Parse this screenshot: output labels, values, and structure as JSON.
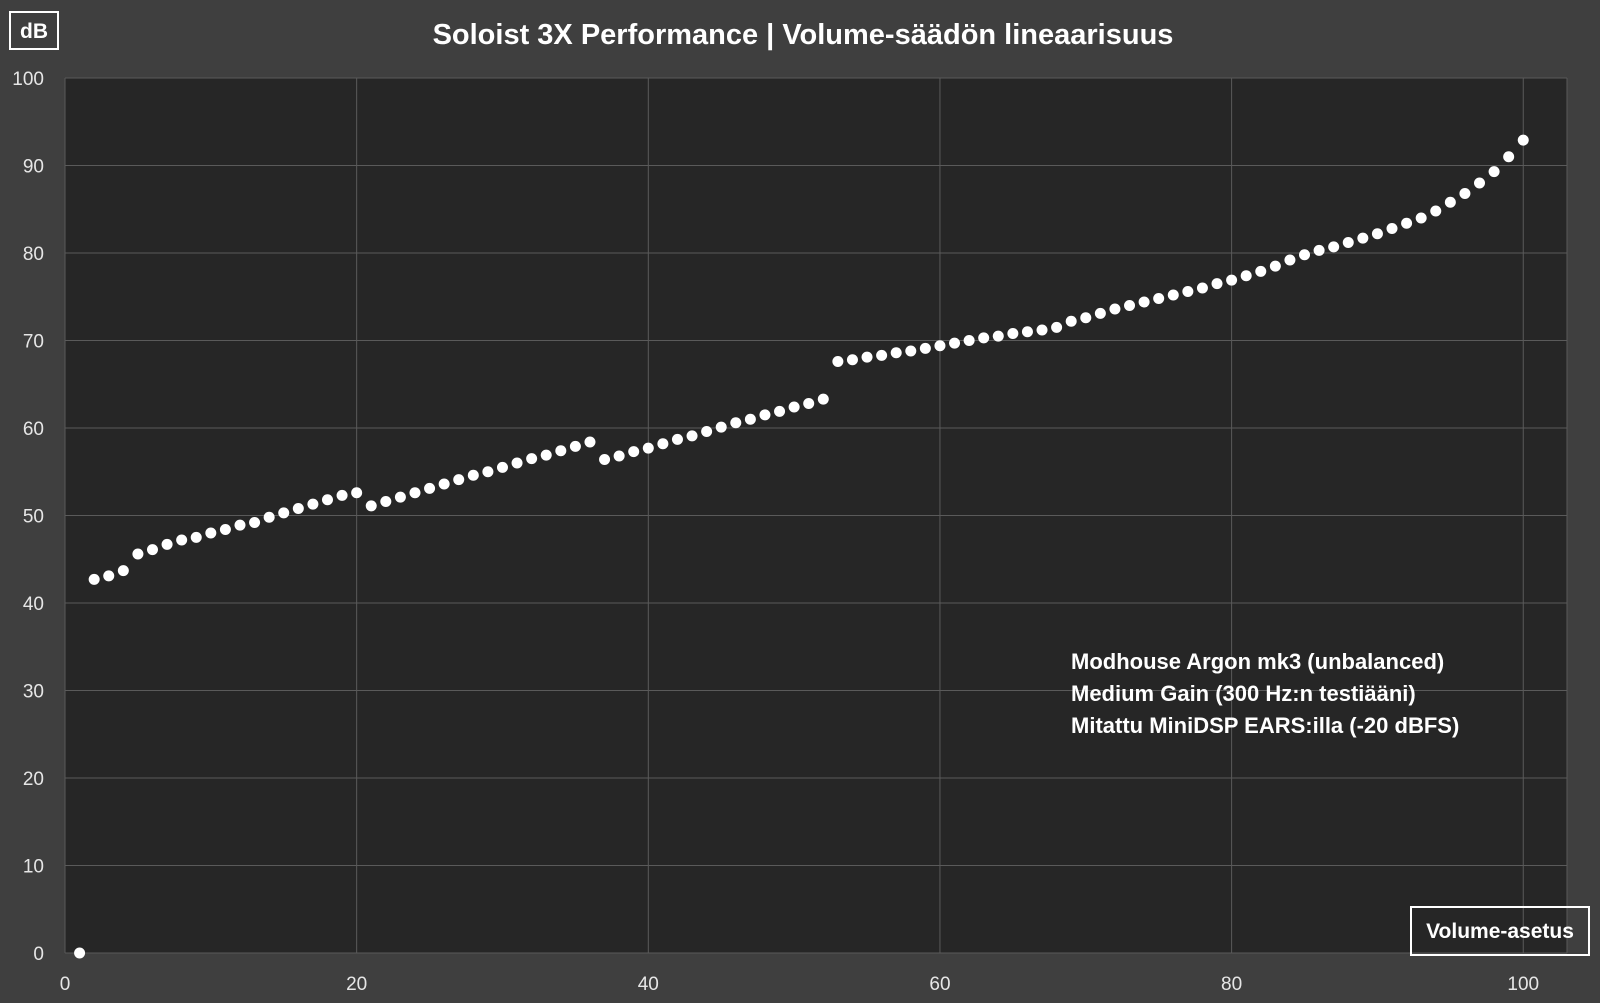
{
  "chart_data": {
    "type": "scatter",
    "title": "Soloist 3X Performance | Volume-säädön lineaarisuus",
    "ylabel": "dB",
    "xlabel": "Volume-asetus",
    "xlim": [
      0,
      103
    ],
    "ylim": [
      0,
      100
    ],
    "x_ticks": [
      0,
      20,
      40,
      60,
      80,
      100
    ],
    "y_ticks": [
      0,
      10,
      20,
      30,
      40,
      50,
      60,
      70,
      80,
      90,
      100
    ],
    "grid": true,
    "annotations": [
      "Modhouse Argon mk3 (unbalanced)",
      "Medium Gain  (300 Hz:n testiääni)",
      "Mitattu MiniDSP EARS:illa (-20 dBFS)"
    ],
    "colors": {
      "background": "#3f3f3f",
      "plot_area": "#262626",
      "gridline": "#5a5a5a",
      "points": "#ffffff",
      "text": "#ffffff"
    },
    "series": [
      {
        "x": [
          1,
          2,
          3,
          4,
          5,
          6,
          7,
          8,
          9,
          10,
          11,
          12,
          13,
          14,
          15,
          16,
          17,
          18,
          19,
          20,
          21,
          22,
          23,
          24,
          25,
          26,
          27,
          28,
          29,
          30,
          31,
          32,
          33,
          34,
          35,
          36,
          37,
          38,
          39,
          40,
          41,
          42,
          43,
          44,
          45,
          46,
          47,
          48,
          49,
          50,
          51,
          52,
          53,
          54,
          55,
          56,
          57,
          58,
          59,
          60,
          61,
          62,
          63,
          64,
          65,
          66,
          67,
          68,
          69,
          70,
          71,
          72,
          73,
          74,
          75,
          76,
          77,
          78,
          79,
          80,
          81,
          82,
          83,
          84,
          85,
          86,
          87,
          88,
          89,
          90,
          91,
          92,
          93,
          94,
          95,
          96,
          97,
          98,
          99,
          100
        ],
        "y": [
          0,
          42.7,
          43.1,
          43.7,
          45.6,
          46.1,
          46.7,
          47.2,
          47.5,
          48,
          48.4,
          48.9,
          49.2,
          49.8,
          50.3,
          50.8,
          51.3,
          51.8,
          52.3,
          52.6,
          51.1,
          51.6,
          52.1,
          52.6,
          53.1,
          53.6,
          54.1,
          54.6,
          55,
          55.5,
          56,
          56.5,
          56.9,
          57.4,
          57.9,
          58.4,
          56.4,
          56.8,
          57.3,
          57.7,
          58.2,
          58.7,
          59.1,
          59.6,
          60.1,
          60.6,
          61,
          61.5,
          61.9,
          62.4,
          62.8,
          63.3,
          67.6,
          67.8,
          68.1,
          68.3,
          68.6,
          68.8,
          69.1,
          69.4,
          69.7,
          70,
          70.3,
          70.5,
          70.8,
          71,
          71.2,
          71.5,
          72.2,
          72.6,
          73.1,
          73.6,
          74,
          74.4,
          74.8,
          75.2,
          75.6,
          76,
          76.5,
          76.9,
          77.4,
          77.9,
          78.5,
          79.2,
          79.8,
          80.3,
          80.7,
          81.2,
          81.7,
          82.2,
          82.8,
          83.4,
          84,
          84.8,
          85.8,
          86.8,
          88,
          89.3,
          91,
          92.9
        ]
      }
    ]
  }
}
